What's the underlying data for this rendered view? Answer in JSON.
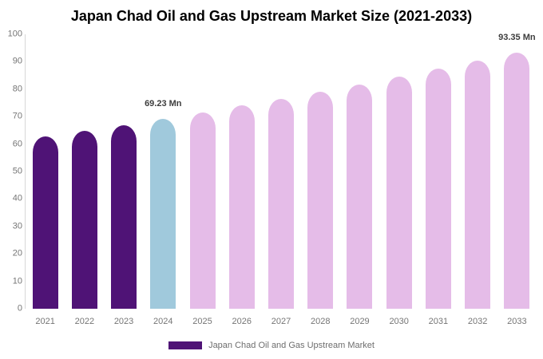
{
  "title": "Japan Chad Oil and Gas Upstream Market Size (2021-2033)",
  "legend": {
    "items": [
      {
        "label": "Japan Chad Oil and Gas Upstream Market",
        "color": "#4f1376"
      }
    ]
  },
  "colors": {
    "bar_historical": "#4f1376",
    "bar_current": "#a0c9dc",
    "bar_forecast": "#e5bce8",
    "axis_line": "#d8d8d8",
    "tick_text": "#757575",
    "annotation_text": "#3d3d3d",
    "title_text": "#000000",
    "background": "#ffffff"
  },
  "chart_data": {
    "type": "bar",
    "title": "Japan Chad Oil and Gas Upstream Market Size (2021-2033)",
    "categories": [
      "2021",
      "2022",
      "2023",
      "2024",
      "2025",
      "2026",
      "2027",
      "2028",
      "2029",
      "2030",
      "2031",
      "2032",
      "2033"
    ],
    "values": [
      62.66,
      64.78,
      66.97,
      69.23,
      71.57,
      73.99,
      76.49,
      79.08,
      81.75,
      84.51,
      87.37,
      90.32,
      93.35
    ],
    "bar_colors": [
      "#4f1376",
      "#4f1376",
      "#4f1376",
      "#a0c9dc",
      "#e5bce8",
      "#e5bce8",
      "#e5bce8",
      "#e5bce8",
      "#e5bce8",
      "#e5bce8",
      "#e5bce8",
      "#e5bce8",
      "#e5bce8"
    ],
    "unit": "Mn",
    "xlabel": "",
    "ylabel": "",
    "ylim": [
      0,
      100
    ],
    "yticks": [
      0,
      10,
      20,
      30,
      40,
      50,
      60,
      70,
      80,
      90,
      100
    ],
    "grid": false,
    "legend_position": "bottom",
    "annotations": [
      {
        "category": "2024",
        "text": "69.23 Mn"
      },
      {
        "category": "2033",
        "text": "93.35 Mn"
      }
    ]
  }
}
